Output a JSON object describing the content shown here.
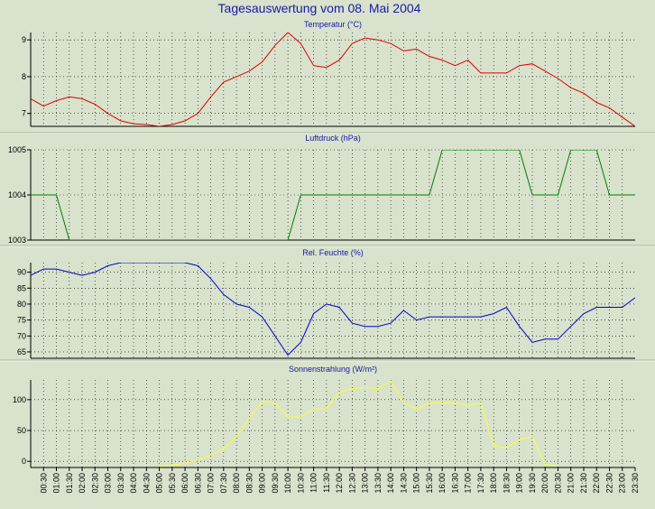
{
  "title": "Tagesauswertung vom 08. Mai 2004",
  "chart_data": [
    {
      "type": "line",
      "title": "Temperatur (°C)",
      "ylim": [
        6.65,
        9.2
      ],
      "yticks": [
        7,
        8,
        9
      ],
      "color": "#e00000",
      "grid": true,
      "x": [
        0,
        0.5,
        1,
        1.5,
        2,
        2.5,
        3,
        3.5,
        4,
        4.5,
        5,
        5.5,
        6,
        6.5,
        7,
        7.5,
        8,
        8.5,
        9,
        9.5,
        10,
        10.5,
        11,
        11.5,
        12,
        12.5,
        13,
        13.5,
        14,
        14.5,
        15,
        15.5,
        16,
        16.5,
        17,
        17.5,
        18,
        18.5,
        19,
        19.5,
        20,
        20.5,
        21,
        21.5,
        22,
        22.5,
        23,
        23.5
      ],
      "values": [
        7.4,
        7.2,
        7.35,
        7.45,
        7.4,
        7.25,
        7.0,
        6.8,
        6.72,
        6.7,
        6.65,
        6.7,
        6.8,
        7.0,
        7.45,
        7.85,
        8.0,
        8.15,
        8.4,
        8.85,
        9.2,
        8.9,
        8.3,
        8.25,
        8.45,
        8.9,
        9.05,
        9.0,
        8.9,
        8.7,
        8.75,
        8.55,
        8.45,
        8.3,
        8.45,
        8.1,
        8.1,
        8.1,
        8.3,
        8.35,
        8.15,
        7.95,
        7.7,
        7.55,
        7.3,
        7.15,
        6.9,
        6.65
      ]
    },
    {
      "type": "line",
      "title": "Luftdruck (hPa)",
      "ylim": [
        1003,
        1005
      ],
      "yticks": [
        1003,
        1004,
        1005
      ],
      "color": "#008000",
      "grid": true,
      "x": [
        0,
        0.5,
        1,
        1.5,
        2,
        2.5,
        3,
        3.5,
        4,
        4.5,
        5,
        5.5,
        6,
        6.5,
        7,
        7.5,
        8,
        8.5,
        9,
        9.5,
        10,
        10.5,
        11,
        11.5,
        12,
        12.5,
        13,
        13.5,
        14,
        14.5,
        15,
        15.5,
        16,
        16.5,
        17,
        17.5,
        18,
        18.5,
        19,
        19.5,
        20,
        20.5,
        21,
        21.5,
        22,
        22.5,
        23,
        23.5
      ],
      "values": [
        1004,
        1004,
        1004,
        1003,
        1003,
        1003,
        1003,
        1003,
        1003,
        1003,
        1003,
        1003,
        1003,
        1003,
        1003,
        1003,
        1003,
        1003,
        1003,
        1003,
        1003,
        1004,
        1004,
        1004,
        1004,
        1004,
        1004,
        1004,
        1004,
        1004,
        1004,
        1004,
        1005,
        1005,
        1005,
        1005,
        1005,
        1005,
        1005,
        1004,
        1004,
        1004,
        1005,
        1005,
        1005,
        1004,
        1004,
        1004
      ]
    },
    {
      "type": "line",
      "title": "Rel. Feuchte (%)",
      "ylim": [
        63,
        93
      ],
      "yticks": [
        65,
        70,
        75,
        80,
        85,
        90
      ],
      "color": "#0000cc",
      "grid": true,
      "x": [
        0,
        0.5,
        1,
        1.5,
        2,
        2.5,
        3,
        3.5,
        4,
        4.5,
        5,
        5.5,
        6,
        6.5,
        7,
        7.5,
        8,
        8.5,
        9,
        9.5,
        10,
        10.5,
        11,
        11.5,
        12,
        12.5,
        13,
        13.5,
        14,
        14.5,
        15,
        15.5,
        16,
        16.5,
        17,
        17.5,
        18,
        18.5,
        19,
        19.5,
        20,
        20.5,
        21,
        21.5,
        22,
        22.5,
        23,
        23.5
      ],
      "values": [
        89,
        91,
        91,
        90,
        89,
        90,
        92,
        93,
        93,
        93,
        93,
        93,
        93,
        92,
        88,
        83,
        80,
        79,
        76,
        70,
        64,
        68,
        77,
        80,
        79,
        74,
        73,
        73,
        74,
        78,
        75,
        76,
        76,
        76,
        76,
        76,
        77,
        79,
        73,
        68,
        69,
        69,
        73,
        77,
        79,
        79,
        79,
        82
      ]
    },
    {
      "type": "line",
      "title": "Sonnenstrahlung (W/m²)",
      "ylim": [
        -10,
        132
      ],
      "yticks": [
        0,
        50,
        100
      ],
      "color": "#ffff33",
      "grid": true,
      "categories": [
        "00:30",
        "01:00",
        "01:30",
        "02:00",
        "02:30",
        "03:00",
        "03:30",
        "04:00",
        "04:30",
        "05:00",
        "05:30",
        "06:00",
        "06:30",
        "07:00",
        "07:30",
        "08:00",
        "08:30",
        "09:00",
        "09:30",
        "10:00",
        "10:30",
        "11:00",
        "11:30",
        "12:00",
        "12:30",
        "13:00",
        "13:30",
        "14:00",
        "14:30",
        "15:00",
        "15:30",
        "16:00",
        "16:30",
        "17:00",
        "17:30",
        "18:00",
        "18:30",
        "19:00",
        "19:30",
        "20:00",
        "20:30",
        "21:00",
        "21:30",
        "22:00",
        "22:30",
        "23:00",
        "23:30"
      ],
      "x": [
        5,
        5.5,
        6,
        6.5,
        7,
        7.5,
        8,
        8.5,
        9,
        9.5,
        10,
        10.5,
        11,
        11.5,
        12,
        12.5,
        13,
        13.5,
        14,
        14.5,
        15,
        15.5,
        16,
        16.5,
        17,
        17.5,
        18,
        18.5,
        19,
        19.5,
        20,
        20.5
      ],
      "values": [
        -8,
        -6,
        -3,
        2,
        10,
        20,
        40,
        70,
        97,
        95,
        72,
        72,
        85,
        85,
        112,
        118,
        120,
        118,
        130,
        95,
        85,
        95,
        95,
        95,
        90,
        95,
        25,
        22,
        35,
        40,
        -5,
        -7
      ]
    }
  ]
}
